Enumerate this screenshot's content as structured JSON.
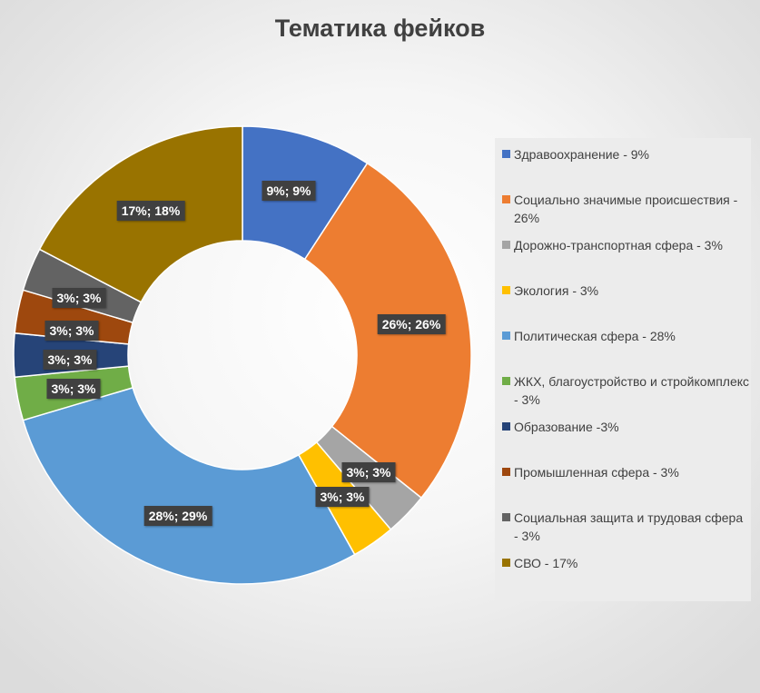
{
  "chart_data": {
    "type": "donut",
    "title": "Тематика фейков",
    "colors": [
      "#4472c4",
      "#ed7d31",
      "#a5a5a5",
      "#ffc000",
      "#5b9bd5",
      "#70ad47",
      "#264478",
      "#9e480e",
      "#636363",
      "#997300"
    ],
    "categories": [
      "Здравоохранение - 9%",
      "Социально значимые происшествия - 26%",
      "Дорожно-транспортная сфера - 3%",
      "Экология - 3%",
      "Политическая сфера - 28%",
      "ЖКХ, благоустройство и стройкомплекс - 3%",
      "Образование -3%",
      "Промышленная сфера - 3%",
      "Социальная защита и трудовая сфера - 3%",
      "СВО - 17%"
    ],
    "values": [
      9,
      26,
      3,
      3,
      28,
      3,
      3,
      3,
      3,
      17
    ],
    "data_labels": [
      "9%; 9%",
      "26%; 26%",
      "3%; 3%",
      "3%; 3%",
      "28%; 29%",
      "3%; 3%",
      "3%; 3%",
      "3%; 3%",
      "3%; 3%",
      "17%; 18%"
    ],
    "legend_position": "right"
  }
}
